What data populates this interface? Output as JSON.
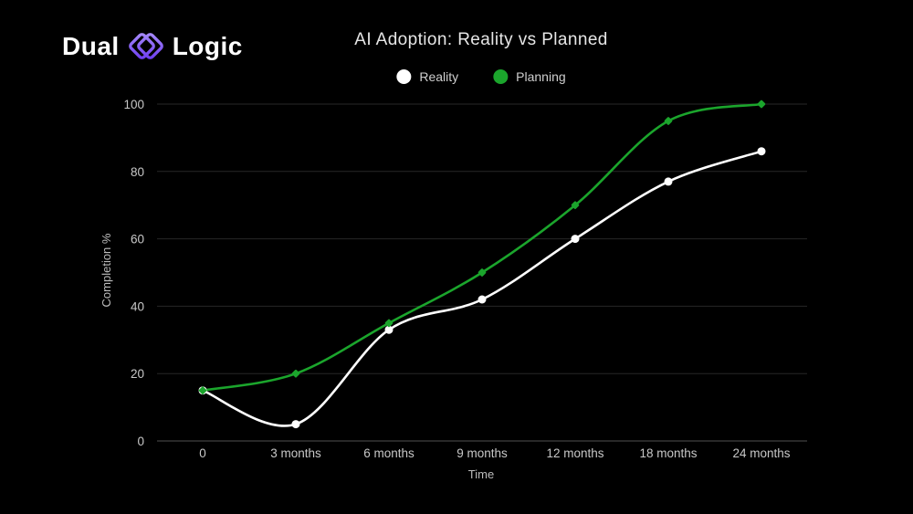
{
  "logo": {
    "word1": "Dual",
    "word2": "Logic",
    "icon_name": "overlapping-diamonds-icon",
    "icon_color_light": "#a78bfa",
    "icon_color_dark": "#6d3df0"
  },
  "chart_data": {
    "type": "line",
    "title": "AI Adoption: Reality vs Planned",
    "categories": [
      "0",
      "3 months",
      "6 months",
      "9 months",
      "12 months",
      "18 months",
      "24 months"
    ],
    "series": [
      {
        "name": "Reality",
        "color": "#ffffff",
        "marker": "circle",
        "values": [
          15,
          5,
          33,
          42,
          60,
          77,
          86
        ]
      },
      {
        "name": "Planning",
        "color": "#1ba52c",
        "marker": "diamond",
        "values": [
          15,
          20,
          35,
          50,
          70,
          95,
          100
        ]
      }
    ],
    "xlabel": "Time",
    "ylabel": "Completion %",
    "ylim": [
      0,
      100
    ],
    "yticks": [
      0,
      20,
      40,
      60,
      80,
      100
    ],
    "grid": true,
    "legend_position": "top-center",
    "colors": {
      "background": "#000000",
      "gridline": "#272727",
      "axis_line": "#4f4f4f",
      "tick_label": "#c8c8c8"
    }
  }
}
